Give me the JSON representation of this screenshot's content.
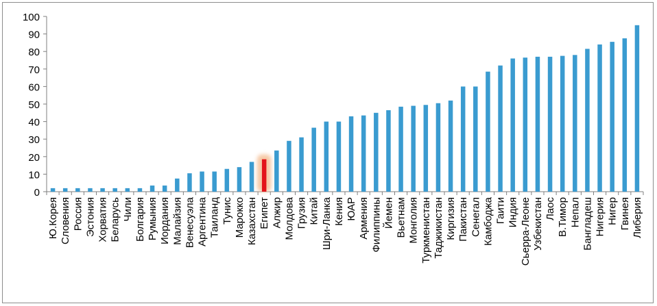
{
  "chart_data": {
    "type": "bar",
    "title": "",
    "xlabel": "",
    "ylabel": "",
    "ylim": [
      0,
      100
    ],
    "yticks": [
      0,
      10,
      20,
      30,
      40,
      50,
      60,
      70,
      80,
      90,
      100
    ],
    "grid": false,
    "legend": "none",
    "bar_color": "#3a9bd0",
    "highlight_color": "#e3141a",
    "highlight_glow_color": "#f6c9a6",
    "highlight_category": "Египет",
    "categories": [
      "Ю.Корея",
      "Словения",
      "Россия",
      "Эстония",
      "Хорватия",
      "Беларусь",
      "Чили",
      "Болгария",
      "Румыния",
      "Иордания",
      "Малайзия",
      "Венесуэла",
      "Аргентина",
      "Таиланд",
      "Тунис",
      "Марокко",
      "Казахстан",
      "Египет",
      "Алжир",
      "Молдова",
      "Грузия",
      "Китай",
      "Шри-Ланка",
      "Кения",
      "ЮАР",
      "Армения",
      "Филиппины",
      "Йемен",
      "Вьетнам",
      "Монголия",
      "Туркменистан",
      "Таджикистан",
      "Киргизия",
      "Пакистан",
      "Сенегал",
      "Камбоджа",
      "Гаити",
      "Индия",
      "Сьерра-Леоне",
      "Узбекистан",
      "Лаос",
      "В.Тимор",
      "Непал",
      "Бангладеш",
      "Нигерия",
      "Нигер",
      "Гвинея",
      "Либерия"
    ],
    "values": [
      2,
      2,
      2,
      2,
      2,
      2,
      2,
      2,
      3.5,
      3.5,
      7.5,
      10.5,
      11.5,
      11.5,
      13,
      14,
      17,
      18.5,
      23.5,
      29,
      31,
      36.5,
      40,
      40,
      43,
      43.5,
      45,
      46.5,
      48.5,
      49,
      49.5,
      50.5,
      52,
      60,
      60,
      68.5,
      72,
      76,
      76.5,
      77,
      77,
      77.5,
      78,
      81.5,
      84,
      85.5,
      87.5,
      95
    ]
  }
}
